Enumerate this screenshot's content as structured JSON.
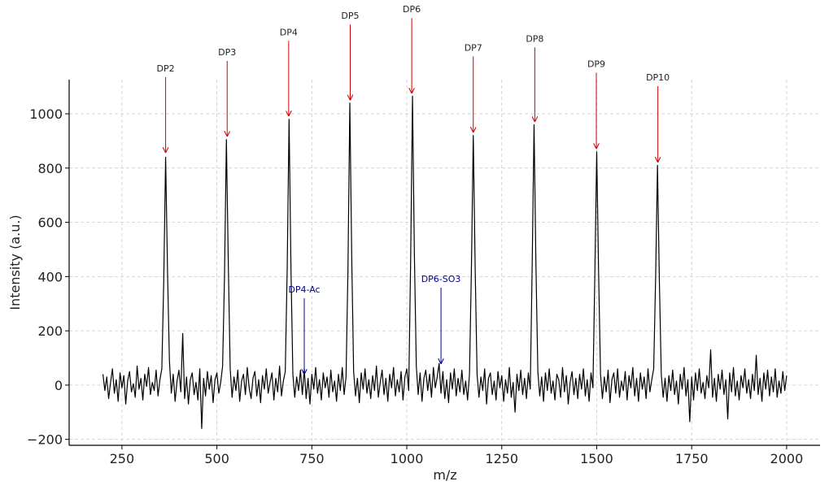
{
  "chart_data": {
    "type": "line",
    "xlabel": "m/z",
    "ylabel": "Intensity (a.u.)",
    "xlim": [
      111,
      2088
    ],
    "ylim": [
      -222,
      1126
    ],
    "xticks": [
      250,
      500,
      750,
      1000,
      1250,
      1500,
      1750,
      2000
    ],
    "yticks": [
      {
        "value": -200,
        "label": "−200"
      },
      0,
      200,
      400,
      600,
      800,
      1000
    ],
    "grid": true,
    "x": [
      200,
      205,
      210,
      215,
      220,
      225,
      230,
      235,
      240,
      245,
      250,
      255,
      260,
      265,
      270,
      275,
      280,
      285,
      290,
      295,
      300,
      305,
      310,
      315,
      320,
      325,
      330,
      335,
      340,
      345,
      350,
      355,
      360,
      365,
      370,
      375,
      380,
      385,
      390,
      395,
      400,
      405,
      410,
      415,
      420,
      425,
      430,
      435,
      440,
      445,
      450,
      455,
      460,
      465,
      470,
      475,
      480,
      485,
      490,
      495,
      500,
      505,
      510,
      515,
      520,
      525,
      530,
      535,
      540,
      545,
      550,
      555,
      560,
      565,
      570,
      575,
      580,
      585,
      590,
      595,
      600,
      605,
      610,
      615,
      620,
      625,
      630,
      635,
      640,
      645,
      650,
      655,
      660,
      665,
      670,
      675,
      680,
      685,
      690,
      695,
      700,
      705,
      710,
      715,
      720,
      725,
      730,
      735,
      740,
      745,
      750,
      755,
      760,
      765,
      770,
      775,
      780,
      785,
      790,
      795,
      800,
      805,
      810,
      815,
      820,
      825,
      830,
      835,
      840,
      845,
      850,
      855,
      860,
      865,
      870,
      875,
      880,
      885,
      890,
      895,
      900,
      905,
      910,
      915,
      920,
      925,
      930,
      935,
      940,
      945,
      950,
      955,
      960,
      965,
      970,
      975,
      980,
      985,
      990,
      995,
      1000,
      1005,
      1010,
      1015,
      1020,
      1025,
      1030,
      1035,
      1040,
      1045,
      1050,
      1055,
      1060,
      1065,
      1070,
      1075,
      1080,
      1085,
      1090,
      1095,
      1100,
      1105,
      1110,
      1115,
      1120,
      1125,
      1130,
      1135,
      1140,
      1145,
      1150,
      1155,
      1160,
      1165,
      1170,
      1175,
      1180,
      1185,
      1190,
      1195,
      1200,
      1205,
      1210,
      1215,
      1220,
      1225,
      1230,
      1235,
      1240,
      1245,
      1250,
      1255,
      1260,
      1265,
      1270,
      1275,
      1280,
      1285,
      1290,
      1295,
      1300,
      1305,
      1310,
      1315,
      1320,
      1325,
      1330,
      1335,
      1340,
      1345,
      1350,
      1355,
      1360,
      1365,
      1370,
      1375,
      1380,
      1385,
      1390,
      1395,
      1400,
      1405,
      1410,
      1415,
      1420,
      1425,
      1430,
      1435,
      1440,
      1445,
      1450,
      1455,
      1460,
      1465,
      1470,
      1475,
      1480,
      1485,
      1490,
      1495,
      1500,
      1505,
      1510,
      1515,
      1520,
      1525,
      1530,
      1535,
      1540,
      1545,
      1550,
      1555,
      1560,
      1565,
      1570,
      1575,
      1580,
      1585,
      1590,
      1595,
      1600,
      1605,
      1610,
      1615,
      1620,
      1625,
      1630,
      1635,
      1640,
      1645,
      1650,
      1655,
      1660,
      1665,
      1670,
      1675,
      1680,
      1685,
      1690,
      1695,
      1700,
      1705,
      1710,
      1715,
      1720,
      1725,
      1730,
      1735,
      1740,
      1745,
      1750,
      1755,
      1760,
      1765,
      1770,
      1775,
      1780,
      1785,
      1790,
      1795,
      1800,
      1805,
      1810,
      1815,
      1820,
      1825,
      1830,
      1835,
      1840,
      1845,
      1850,
      1855,
      1860,
      1865,
      1870,
      1875,
      1880,
      1885,
      1890,
      1895,
      1900,
      1905,
      1910,
      1915,
      1920,
      1925,
      1930,
      1935,
      1940,
      1945,
      1950,
      1955,
      1960,
      1965,
      1970,
      1975,
      1980,
      1985,
      1990,
      1995,
      2000
    ],
    "series": [
      {
        "color": "#000000",
        "values": [
          40,
          -20,
          30,
          -50,
          10,
          60,
          -30,
          20,
          -60,
          45,
          -10,
          35,
          -70,
          15,
          50,
          -25,
          5,
          -45,
          70,
          -15,
          25,
          -55,
          40,
          -5,
          65,
          -35,
          10,
          -20,
          55,
          -40,
          20,
          60,
          380,
          840,
          420,
          90,
          -30,
          40,
          -60,
          15,
          55,
          -25,
          190,
          -50,
          30,
          -70,
          20,
          45,
          -35,
          10,
          -55,
          60,
          -160,
          25,
          -40,
          50,
          -15,
          35,
          -65,
          20,
          45,
          -30,
          10,
          70,
          400,
          905,
          450,
          60,
          -45,
          30,
          -20,
          55,
          -60,
          15,
          40,
          -35,
          65,
          -10,
          -50,
          25,
          50,
          -40,
          20,
          -65,
          35,
          -15,
          60,
          -30,
          10,
          45,
          -55,
          25,
          -25,
          70,
          -40,
          15,
          50,
          420,
          980,
          430,
          40,
          -45,
          30,
          -20,
          55,
          -35,
          60,
          -50,
          25,
          -70,
          40,
          -15,
          65,
          -30,
          20,
          -55,
          45,
          -10,
          30,
          -45,
          55,
          -25,
          15,
          -60,
          40,
          -20,
          65,
          -35,
          30,
          420,
          1040,
          470,
          50,
          -40,
          25,
          -65,
          45,
          -15,
          60,
          -30,
          20,
          -50,
          35,
          -20,
          70,
          -45,
          10,
          55,
          -35,
          25,
          -60,
          40,
          -10,
          65,
          -40,
          20,
          -25,
          50,
          -55,
          30,
          60,
          -20,
          450,
          1065,
          480,
          70,
          -35,
          45,
          -60,
          25,
          55,
          -20,
          40,
          -45,
          65,
          -10,
          30,
          80,
          -30,
          50,
          -50,
          20,
          -65,
          45,
          -15,
          60,
          -40,
          25,
          -25,
          55,
          -35,
          15,
          -55,
          40,
          420,
          920,
          430,
          40,
          -45,
          30,
          -20,
          60,
          -70,
          25,
          45,
          -35,
          15,
          -55,
          50,
          -10,
          35,
          -60,
          20,
          -30,
          65,
          -45,
          10,
          -100,
          40,
          -20,
          55,
          -35,
          25,
          -50,
          45,
          -15,
          430,
          960,
          440,
          50,
          -40,
          30,
          -60,
          45,
          -20,
          60,
          -30,
          15,
          -55,
          40,
          20,
          -45,
          65,
          -25,
          35,
          -70,
          10,
          50,
          -35,
          25,
          -50,
          40,
          -15,
          60,
          -40,
          20,
          -60,
          45,
          -10,
          400,
          860,
          410,
          40,
          -50,
          30,
          -25,
          55,
          -65,
          20,
          45,
          -30,
          60,
          -45,
          15,
          -20,
          50,
          -55,
          35,
          -10,
          65,
          -40,
          25,
          -60,
          45,
          -15,
          30,
          -50,
          60,
          -25,
          20,
          60,
          390,
          810,
          380,
          40,
          -45,
          25,
          -60,
          35,
          -20,
          55,
          -35,
          15,
          -70,
          40,
          -15,
          65,
          -40,
          20,
          -135,
          30,
          -55,
          45,
          -20,
          60,
          -30,
          10,
          -50,
          35,
          -10,
          130,
          -45,
          25,
          -60,
          40,
          -15,
          55,
          -35,
          20,
          -125,
          45,
          -25,
          65,
          -40,
          15,
          -55,
          35,
          -10,
          60,
          -30,
          20,
          -50,
          40,
          -20,
          110,
          -35,
          25,
          -60,
          45,
          -15,
          55,
          -40,
          30,
          -25,
          60,
          -45,
          15,
          -30,
          50,
          -20,
          35
        ]
      }
    ],
    "annotations": [
      {
        "text": "DP2",
        "xy": [
          365,
          856
        ],
        "xytext": [
          365,
          1156
        ],
        "color": "#d00000"
      },
      {
        "text": "DP3",
        "xy": [
          527,
          916
        ],
        "xytext": [
          527,
          1216
        ],
        "color": "#d00000"
      },
      {
        "text": "DP4",
        "xy": [
          689,
          991
        ],
        "xytext": [
          689,
          1290
        ],
        "color": "#d00000"
      },
      {
        "text": "DP5",
        "xy": [
          851,
          1050
        ],
        "xytext": [
          851,
          1350
        ],
        "color": "#d00000"
      },
      {
        "text": "DP6",
        "xy": [
          1013,
          1075
        ],
        "xytext": [
          1013,
          1374
        ],
        "color": "#d00000"
      },
      {
        "text": "DP7",
        "xy": [
          1175,
          931
        ],
        "xytext": [
          1175,
          1233
        ],
        "color": "#d00000"
      },
      {
        "text": "DP8",
        "xy": [
          1337,
          970
        ],
        "xytext": [
          1337,
          1266
        ],
        "color": "#d00000"
      },
      {
        "text": "DP9",
        "xy": [
          1499,
          871
        ],
        "xytext": [
          1499,
          1173
        ],
        "color": "#d00000"
      },
      {
        "text": "DP10",
        "xy": [
          1661,
          821
        ],
        "xytext": [
          1661,
          1123
        ],
        "color": "#d00000"
      },
      {
        "text": "DP4-Ac",
        "xy": [
          730,
          39
        ],
        "xytext": [
          730,
          341
        ],
        "color": "#00008b"
      },
      {
        "text": "DP6-SO3",
        "xy": [
          1090,
          78
        ],
        "xytext": [
          1090,
          380
        ],
        "color": "#00008b"
      }
    ]
  }
}
